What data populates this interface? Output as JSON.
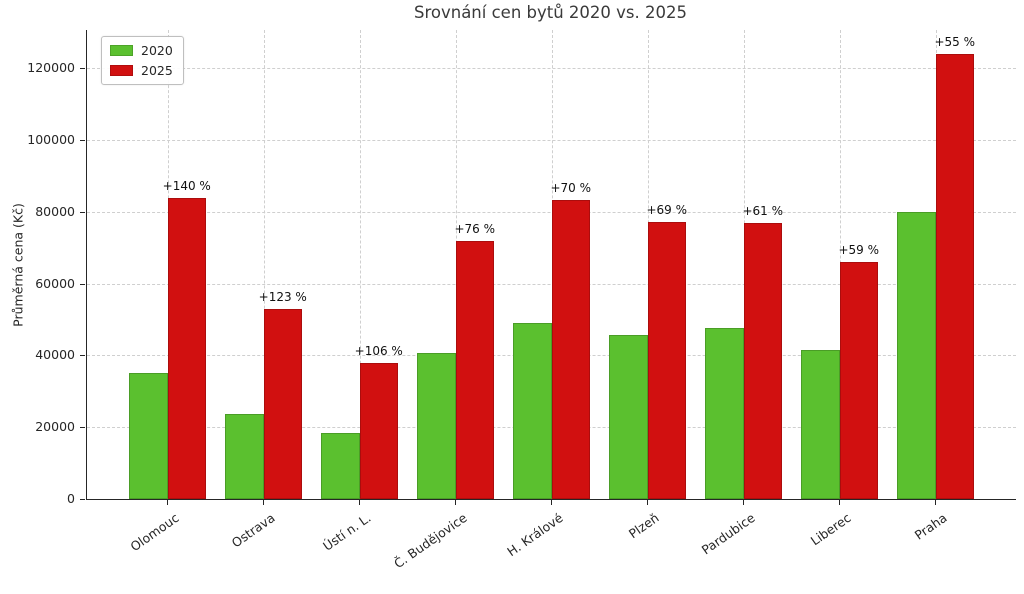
{
  "title": "Srovnání cen bytů 2020 vs. 2025",
  "chart_data": {
    "type": "bar",
    "title": "Srovnání cen bytů 2020 vs. 2025",
    "xlabel": "",
    "ylabel": "Průměrná cena (Kč)",
    "categories": [
      "Olomouc",
      "Ostrava",
      "Ústí n. L.",
      "Č. Budějovice",
      "H. Králové",
      "Plzeň",
      "Pardubice",
      "Liberec",
      "Praha"
    ],
    "series": [
      {
        "name": "2020",
        "color": "#5bc02f",
        "values": [
          35000,
          23800,
          18400,
          40800,
          49000,
          45600,
          47700,
          41500,
          80000
        ]
      },
      {
        "name": "2025",
        "color": "#d11010",
        "values": [
          84000,
          53000,
          37900,
          71800,
          83300,
          77100,
          76800,
          66000,
          124000
        ]
      }
    ],
    "annotations": [
      "+140 %",
      "+123 %",
      "+106 %",
      "+76 %",
      "+70 %",
      "+69 %",
      "+61 %",
      "+59 %",
      "+55 %"
    ],
    "yticks": [
      0,
      20000,
      40000,
      60000,
      80000,
      100000,
      120000
    ],
    "ylim": [
      0,
      130700
    ],
    "grid": "dashed horizontal and vertical gridlines",
    "legend_position": "upper left",
    "bar_colors": {
      "2020": "#5bc02f",
      "2025": "#d11010"
    }
  }
}
